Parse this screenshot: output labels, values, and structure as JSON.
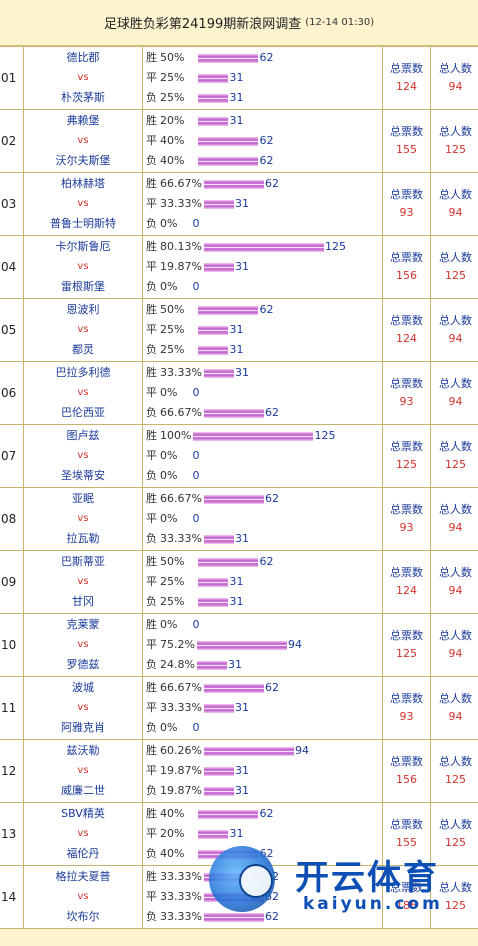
{
  "header": {
    "title": "足球胜负彩第24199期新浪网调查",
    "time": "(12-14 01:30)"
  },
  "labels": {
    "vs": "vs",
    "win": "胜",
    "draw": "平",
    "lose": "负",
    "total_votes": "总票数",
    "total_people": "总人数"
  },
  "matches": [
    {
      "no": "01",
      "home": "德比郡",
      "away": "朴茨茅斯",
      "win_pct": "50%",
      "win_n": "62",
      "win_frac": 0.496,
      "draw_pct": "25%",
      "draw_n": "31",
      "draw_frac": 0.248,
      "lose_pct": "25%",
      "lose_n": "31",
      "lose_frac": 0.248,
      "votes": "124",
      "people": "94"
    },
    {
      "no": "02",
      "home": "弗赖堡",
      "away": "沃尔夫斯堡",
      "win_pct": "20%",
      "win_n": "31",
      "win_frac": 0.248,
      "draw_pct": "40%",
      "draw_n": "62",
      "draw_frac": 0.496,
      "lose_pct": "40%",
      "lose_n": "62",
      "lose_frac": 0.496,
      "votes": "155",
      "people": "125"
    },
    {
      "no": "03",
      "home": "柏林赫塔",
      "away": "普鲁士明斯特",
      "win_pct": "66.67%",
      "win_n": "62",
      "win_frac": 0.496,
      "draw_pct": "33.33%",
      "draw_n": "31",
      "draw_frac": 0.248,
      "lose_pct": "0%",
      "lose_n": "0",
      "lose_frac": 0,
      "votes": "93",
      "people": "94"
    },
    {
      "no": "04",
      "home": "卡尔斯鲁厄",
      "away": "雷根斯堡",
      "win_pct": "80.13%",
      "win_n": "125",
      "win_frac": 1.0,
      "draw_pct": "19.87%",
      "draw_n": "31",
      "draw_frac": 0.248,
      "lose_pct": "0%",
      "lose_n": "0",
      "lose_frac": 0,
      "votes": "156",
      "people": "125"
    },
    {
      "no": "05",
      "home": "恩波利",
      "away": "都灵",
      "win_pct": "50%",
      "win_n": "62",
      "win_frac": 0.496,
      "draw_pct": "25%",
      "draw_n": "31",
      "draw_frac": 0.248,
      "lose_pct": "25%",
      "lose_n": "31",
      "lose_frac": 0.248,
      "votes": "124",
      "people": "94"
    },
    {
      "no": "06",
      "home": "巴拉多利德",
      "away": "巴伦西亚",
      "win_pct": "33.33%",
      "win_n": "31",
      "win_frac": 0.248,
      "draw_pct": "0%",
      "draw_n": "0",
      "draw_frac": 0,
      "lose_pct": "66.67%",
      "lose_n": "62",
      "lose_frac": 0.496,
      "votes": "93",
      "people": "94"
    },
    {
      "no": "07",
      "home": "图卢兹",
      "away": "圣埃蒂安",
      "win_pct": "100%",
      "win_n": "125",
      "win_frac": 1.0,
      "draw_pct": "0%",
      "draw_n": "0",
      "draw_frac": 0,
      "lose_pct": "0%",
      "lose_n": "0",
      "lose_frac": 0,
      "votes": "125",
      "people": "125"
    },
    {
      "no": "08",
      "home": "亚眠",
      "away": "拉瓦勒",
      "win_pct": "66.67%",
      "win_n": "62",
      "win_frac": 0.496,
      "draw_pct": "0%",
      "draw_n": "0",
      "draw_frac": 0,
      "lose_pct": "33.33%",
      "lose_n": "31",
      "lose_frac": 0.248,
      "votes": "93",
      "people": "94"
    },
    {
      "no": "09",
      "home": "巴斯蒂亚",
      "away": "甘冈",
      "win_pct": "50%",
      "win_n": "62",
      "win_frac": 0.496,
      "draw_pct": "25%",
      "draw_n": "31",
      "draw_frac": 0.248,
      "lose_pct": "25%",
      "lose_n": "31",
      "lose_frac": 0.248,
      "votes": "124",
      "people": "94"
    },
    {
      "no": "10",
      "home": "克莱蒙",
      "away": "罗德兹",
      "win_pct": "0%",
      "win_n": "0",
      "win_frac": 0,
      "draw_pct": "75.2%",
      "draw_n": "94",
      "draw_frac": 0.752,
      "lose_pct": "24.8%",
      "lose_n": "31",
      "lose_frac": 0.248,
      "votes": "125",
      "people": "94"
    },
    {
      "no": "11",
      "home": "波城",
      "away": "阿雅克肖",
      "win_pct": "66.67%",
      "win_n": "62",
      "win_frac": 0.496,
      "draw_pct": "33.33%",
      "draw_n": "31",
      "draw_frac": 0.248,
      "lose_pct": "0%",
      "lose_n": "0",
      "lose_frac": 0,
      "votes": "93",
      "people": "94"
    },
    {
      "no": "12",
      "home": "兹沃勒",
      "away": "威廉二世",
      "win_pct": "60.26%",
      "win_n": "94",
      "win_frac": 0.752,
      "draw_pct": "19.87%",
      "draw_n": "31",
      "draw_frac": 0.248,
      "lose_pct": "19.87%",
      "lose_n": "31",
      "lose_frac": 0.248,
      "votes": "156",
      "people": "125"
    },
    {
      "no": "13",
      "home": "SBV精英",
      "away": "福伦丹",
      "win_pct": "40%",
      "win_n": "62",
      "win_frac": 0.496,
      "draw_pct": "20%",
      "draw_n": "31",
      "draw_frac": 0.248,
      "lose_pct": "40%",
      "lose_n": "62",
      "lose_frac": 0.496,
      "votes": "155",
      "people": "125"
    },
    {
      "no": "14",
      "home": "格拉夫夏普",
      "away": "坎布尔",
      "win_pct": "33.33%",
      "win_n": "62",
      "win_frac": 0.496,
      "draw_pct": "33.33%",
      "draw_n": "62",
      "draw_frac": 0.496,
      "lose_pct": "33.33%",
      "lose_n": "62",
      "lose_frac": 0.496,
      "votes": "186",
      "people": "125"
    }
  ],
  "watermark": {
    "brand": "开云体育",
    "domain": "kaiyun.com"
  },
  "colors": {
    "header_bg": "#fdf3cf",
    "border": "#c9b370",
    "team": "#1a3a9a",
    "vs": "#d0332c",
    "bar": "#b84bc8"
  }
}
